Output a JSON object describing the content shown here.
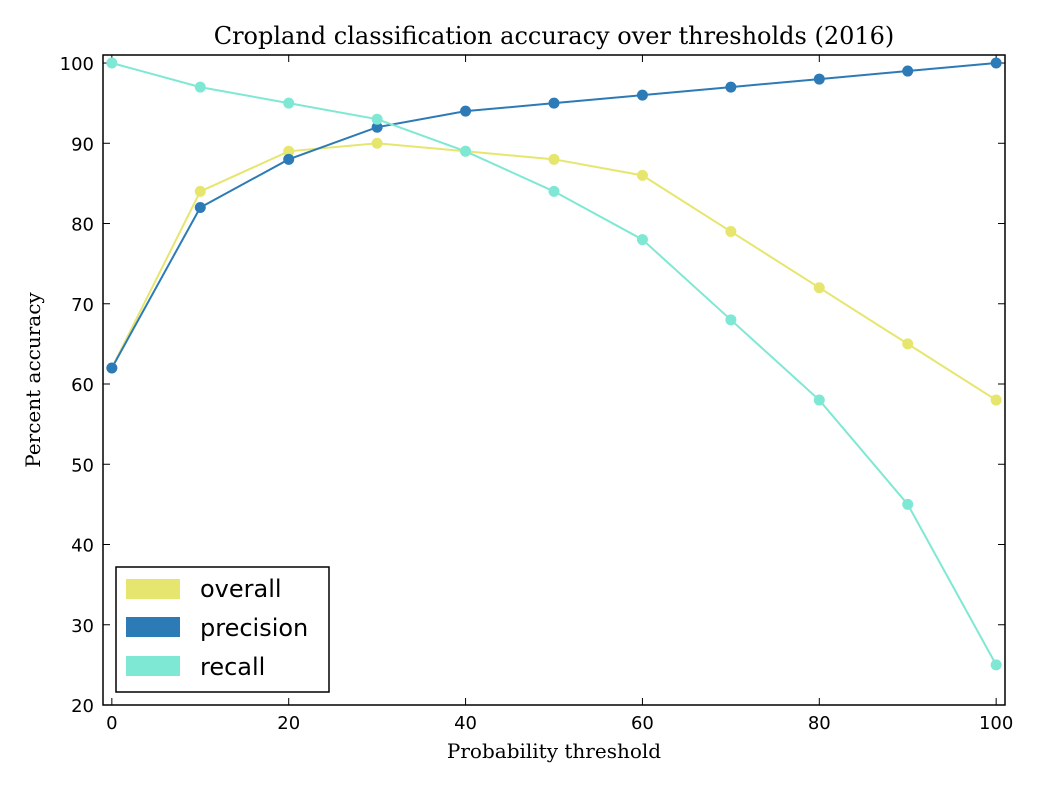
{
  "chart_data": {
    "type": "line",
    "title": "Cropland classification accuracy over thresholds (2016)",
    "xlabel": "Probability threshold",
    "ylabel": "Percent accuracy",
    "xlim": [
      -1,
      101
    ],
    "ylim": [
      20,
      101
    ],
    "x": [
      0,
      10,
      20,
      30,
      40,
      50,
      60,
      70,
      80,
      90,
      100
    ],
    "xticks": [
      "0",
      "20",
      "40",
      "60",
      "80",
      "100"
    ],
    "yticks": [
      "20",
      "30",
      "40",
      "50",
      "60",
      "70",
      "80",
      "90",
      "100"
    ],
    "series": [
      {
        "name": "overall",
        "color": "#e6e66e",
        "values": [
          62,
          84,
          89,
          90,
          89,
          88,
          86,
          79,
          72,
          65,
          58
        ]
      },
      {
        "name": "precision",
        "color": "#2c7bb6",
        "values": [
          62,
          82,
          88,
          92,
          94,
          95,
          96,
          97,
          98,
          99,
          100
        ]
      },
      {
        "name": "recall",
        "color": "#7fe8d4",
        "values": [
          100,
          97,
          95,
          93,
          89,
          84,
          78,
          68,
          58,
          45,
          25
        ]
      }
    ],
    "legend_position": "lower-left",
    "grid": false
  }
}
